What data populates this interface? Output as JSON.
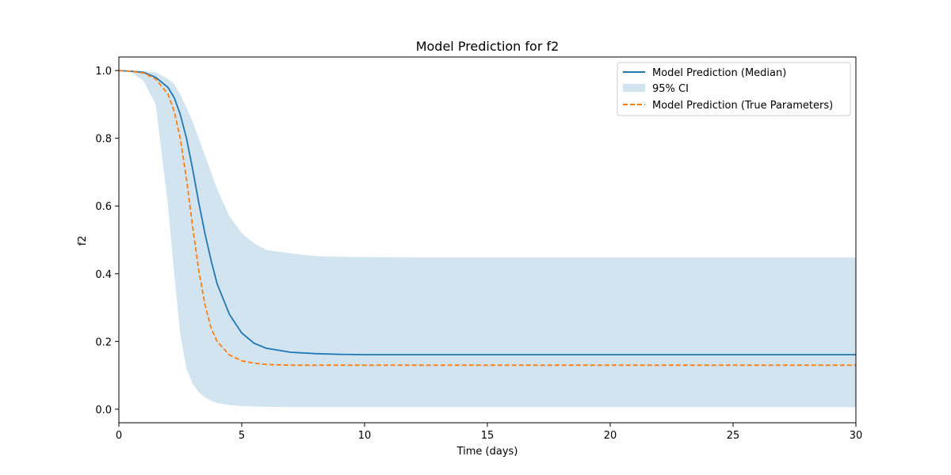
{
  "chart_data": {
    "type": "line",
    "title": "Model Prediction for f2",
    "xlabel": "Time (days)",
    "ylabel": "f2",
    "xlim": [
      0,
      30
    ],
    "ylim": [
      -0.04,
      1.04
    ],
    "xticks": [
      0,
      5,
      10,
      15,
      20,
      25,
      30
    ],
    "yticks": [
      0.0,
      0.2,
      0.4,
      0.6,
      0.8,
      1.0
    ],
    "xtick_labels": [
      "0",
      "5",
      "10",
      "15",
      "20",
      "25",
      "30"
    ],
    "ytick_labels": [
      "0.0",
      "0.2",
      "0.4",
      "0.6",
      "0.8",
      "1.0"
    ],
    "grid": false,
    "legend_position": "upper-right",
    "colors": {
      "median": "#1f77b4",
      "ci": "#1f77b4",
      "true": "#ff7f0e"
    },
    "x": [
      0,
      0.5,
      1,
      1.5,
      2,
      2.25,
      2.5,
      2.75,
      3,
      3.25,
      3.5,
      3.75,
      4,
      4.5,
      5,
      5.5,
      6,
      7,
      8,
      9,
      10,
      12,
      15,
      20,
      25,
      30
    ],
    "series": [
      {
        "name": "Model Prediction (Median)",
        "style": "solid",
        "values": [
          1.0,
          0.998,
          0.995,
          0.98,
          0.95,
          0.92,
          0.87,
          0.8,
          0.71,
          0.61,
          0.52,
          0.44,
          0.37,
          0.28,
          0.225,
          0.195,
          0.18,
          0.168,
          0.164,
          0.162,
          0.161,
          0.161,
          0.161,
          0.161,
          0.161,
          0.161
        ]
      },
      {
        "name": "Model Prediction (True Parameters)",
        "style": "dashed",
        "values": [
          1.0,
          0.998,
          0.993,
          0.975,
          0.93,
          0.88,
          0.8,
          0.68,
          0.54,
          0.41,
          0.31,
          0.24,
          0.2,
          0.16,
          0.143,
          0.136,
          0.132,
          0.13,
          0.13,
          0.13,
          0.13,
          0.13,
          0.13,
          0.13,
          0.13,
          0.13
        ]
      }
    ],
    "band": {
      "name": "95% CI",
      "lower": [
        1.0,
        0.995,
        0.97,
        0.9,
        0.6,
        0.4,
        0.22,
        0.12,
        0.075,
        0.05,
        0.035,
        0.025,
        0.018,
        0.012,
        0.009,
        0.008,
        0.007,
        0.006,
        0.006,
        0.006,
        0.006,
        0.006,
        0.006,
        0.006,
        0.006,
        0.006
      ],
      "upper": [
        1.0,
        1.0,
        0.998,
        0.995,
        0.975,
        0.96,
        0.93,
        0.89,
        0.85,
        0.8,
        0.75,
        0.7,
        0.65,
        0.57,
        0.52,
        0.49,
        0.47,
        0.46,
        0.452,
        0.45,
        0.449,
        0.448,
        0.448,
        0.448,
        0.448,
        0.448
      ]
    }
  }
}
